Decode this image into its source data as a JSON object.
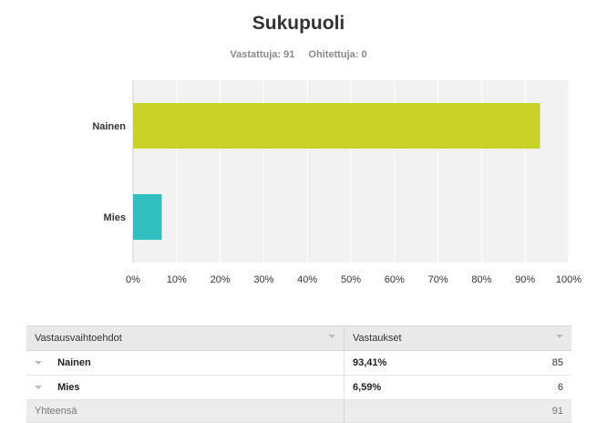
{
  "chart_data": {
    "type": "bar",
    "orientation": "horizontal",
    "title": "Sukupuoli",
    "categories": [
      "Nainen",
      "Mies"
    ],
    "values": [
      93.41,
      6.59
    ],
    "colors": [
      "#c9d327",
      "#2fbfbf"
    ],
    "xlim": [
      0,
      100
    ],
    "x_ticks": [
      "0%",
      "10%",
      "20%",
      "30%",
      "40%",
      "50%",
      "60%",
      "70%",
      "80%",
      "90%",
      "100%"
    ],
    "grid": true
  },
  "stats": {
    "answered_label": "Vastattuja: 91",
    "skipped_label": "Ohitettuja: 0"
  },
  "table": {
    "headers": {
      "choices": "Vastausvaihtoehdot",
      "responses": "Vastaukset"
    },
    "rows": [
      {
        "label": "Nainen",
        "percent": "93,41%",
        "count": "85"
      },
      {
        "label": "Mies",
        "percent": "6,59%",
        "count": "6"
      }
    ],
    "total": {
      "label": "Yhteensä",
      "count": "91"
    }
  }
}
